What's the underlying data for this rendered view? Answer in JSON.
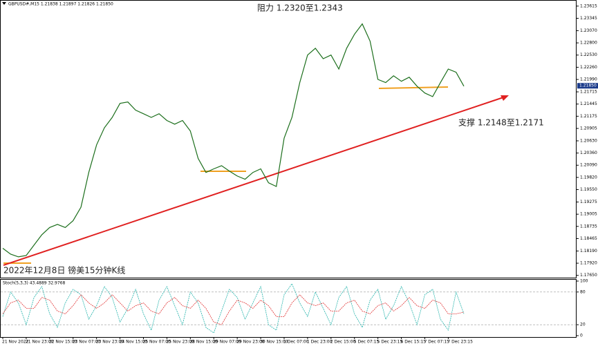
{
  "chart_data": [
    {
      "type": "line",
      "title": "GBPUSD#,M15 1.21838 1.21897 1.21826 1.21850",
      "annotations": [
        "阻力 1.2320至1.2343",
        "支撑 1.2148至1.2171",
        "2022年12月8日 镑美15分钟K线"
      ],
      "categories": [
        "21 Nov 2022",
        null,
        null,
        "21 Nov 23:00",
        null,
        null,
        "22 Nov 15:00",
        null,
        null,
        "23 Nov 07:00",
        null,
        null,
        "23 Nov 23:00",
        null,
        null,
        "24 Nov 15:00",
        null,
        null,
        "25 Nov 07:00",
        null,
        null,
        "25 Nov 23:00",
        null,
        null,
        "28 Nov 15:00",
        null,
        null,
        "29 Nov 07:00",
        null,
        null,
        "29 Nov 23:00",
        null,
        null,
        "30 Nov 15:00",
        null,
        null,
        "1 Dec 07:00",
        null,
        null,
        "1 Dec 23:00",
        null,
        null,
        "2 Dec 15:00",
        null,
        null,
        "5 Dec 07:15",
        null,
        null,
        "5 Dec 23:15",
        null,
        null,
        "6 Dec 15:15",
        null,
        null,
        "7 Dec 07:15",
        null,
        null,
        "7 Dec 23:15",
        null,
        null
      ],
      "series": [
        {
          "color": "#1b6e1b",
          "values": [
            1.1825,
            1.1812,
            1.1806,
            1.1809,
            1.1832,
            1.1855,
            1.1871,
            1.1878,
            1.1871,
            1.1886,
            1.1916,
            1.1993,
            1.2054,
            1.2092,
            1.2115,
            1.2146,
            1.2149,
            1.2131,
            1.2123,
            1.2115,
            1.2123,
            1.2108,
            1.21,
            1.2108,
            1.2085,
            1.2024,
            1.1993,
            1.2001,
            1.2008,
            1.1996,
            1.1985,
            1.1978,
            1.1993,
            1.2001,
            1.197,
            1.1962,
            1.2069,
            1.2115,
            1.2192,
            1.2253,
            1.2268,
            1.2245,
            1.2253,
            1.2222,
            1.2268,
            1.2299,
            1.2322,
            1.2284,
            1.2199,
            1.2192,
            1.2207,
            1.2195,
            1.2204,
            1.2184,
            1.2169,
            1.2161,
            1.2192,
            1.2222,
            1.2215,
            1.2184
          ]
        }
      ],
      "ylim": [
        1.176,
        1.2375
      ],
      "yticks": [
        1.23615,
        1.23345,
        {
          "value": 1.2307,
          "label": "1.23070"
        },
        {
          "value": 1.228,
          "label": "1.22800"
        },
        {
          "value": 1.2253,
          "label": "1.22530"
        },
        {
          "value": 1.2226,
          "label": "1.22260"
        },
        {
          "value": 1.2199,
          "label": "1.21990"
        },
        1.21715,
        1.21445,
        1.21175,
        1.20905,
        {
          "value": 1.2063,
          "label": "1.20630"
        },
        {
          "value": 1.2036,
          "label": "1.20360"
        },
        {
          "value": 1.2009,
          "label": "1.20090"
        },
        {
          "value": 1.1982,
          "label": "1.19820"
        },
        {
          "value": 1.1955,
          "label": "1.19550"
        },
        1.19275,
        1.19005,
        1.18735,
        1.18465,
        {
          "value": 1.1819,
          "label": "1.18190"
        },
        {
          "value": 1.1792,
          "label": "1.17920"
        },
        {
          "value": 1.1765,
          "label": "1.17650"
        }
      ],
      "current_price": {
        "value": 1.2185,
        "label": "1.21850"
      }
    },
    {
      "type": "line",
      "title": "Stoch(5,3,3) 43.4889 32.9768",
      "series": [
        {
          "color": "#20b2aa",
          "values": [
            35,
            80,
            60,
            20,
            70,
            90,
            40,
            15,
            60,
            85,
            75,
            30,
            55,
            90,
            70,
            25,
            50,
            85,
            40,
            10,
            65,
            90,
            55,
            20,
            80,
            60,
            15,
            5,
            45,
            85,
            70,
            30,
            60,
            90,
            20,
            10,
            75,
            95,
            60,
            35,
            80,
            50,
            20,
            70,
            90,
            40,
            15,
            65,
            85,
            30,
            55,
            90,
            60,
            20,
            75,
            85,
            30,
            10,
            80,
            40
          ]
        },
        {
          "color": "#e03030",
          "values": [
            40,
            60,
            65,
            50,
            50,
            70,
            65,
            45,
            40,
            55,
            75,
            60,
            50,
            60,
            75,
            60,
            45,
            55,
            60,
            45,
            40,
            60,
            70,
            55,
            50,
            65,
            50,
            25,
            20,
            45,
            65,
            60,
            50,
            65,
            55,
            35,
            35,
            60,
            75,
            60,
            55,
            60,
            45,
            45,
            60,
            65,
            45,
            40,
            55,
            60,
            45,
            55,
            70,
            55,
            50,
            65,
            60,
            40,
            40,
            43
          ]
        }
      ],
      "ylim": [
        0,
        100
      ],
      "yticks": [
        0,
        20,
        80,
        100
      ]
    }
  ]
}
